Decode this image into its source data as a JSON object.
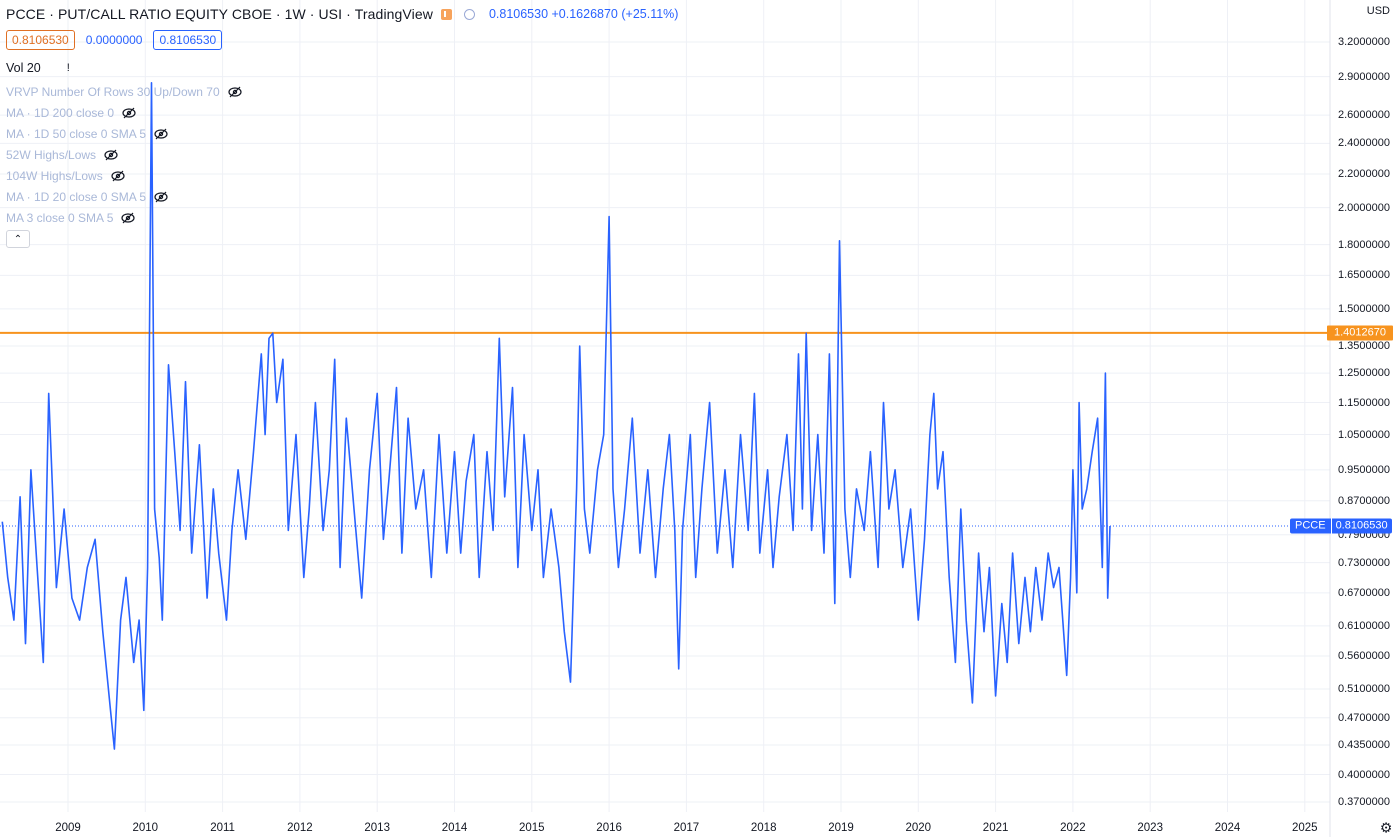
{
  "header": {
    "symbol": "PCCE",
    "description": "PUT/CALL RATIO EQUITY CBOE",
    "interval": "1W",
    "exchange": "USI",
    "source": "TradingView",
    "change_text": "0.8106530 +0.1626870 (+25.11%)"
  },
  "values": {
    "open": "0.8106530",
    "change": "0.0000000",
    "close": "0.8106530"
  },
  "volume": {
    "label": "Vol 20",
    "warning": "!"
  },
  "indicators": [
    {
      "label": "VRVP Number Of Rows 30 Up/Down 70"
    },
    {
      "label": "MA · 1D 200 close 0"
    },
    {
      "label": "MA · 1D 50 close 0 SMA 5"
    },
    {
      "label": "52W Highs/Lows"
    },
    {
      "label": "104W Highs/Lows"
    },
    {
      "label": "MA · 1D 20 close 0 SMA 5"
    },
    {
      "label": "MA 3 close 0 SMA 5"
    }
  ],
  "axis": {
    "currency": "USD",
    "gear_icon": "gear-icon"
  },
  "price_label": {
    "name": "PCCE",
    "value": "0.8106530"
  },
  "horizontal_line": {
    "value": 1.401267,
    "label": "1.4012670",
    "color": "#f7931e"
  },
  "colors": {
    "series": "#2962ff",
    "grid": "#eef0f6",
    "hline": "#f7931e"
  },
  "chart_data": {
    "type": "line",
    "title": "PCCE · PUT/CALL RATIO EQUITY CBOE · 1W",
    "scale": "log",
    "ylim": [
      0.35,
      3.3
    ],
    "xlim": [
      2008.15,
      2025.3
    ],
    "y_ticks": [
      3.2,
      2.9,
      2.6,
      2.4,
      2.2,
      2.0,
      1.8,
      1.65,
      1.5,
      1.35,
      1.25,
      1.15,
      1.05,
      0.95,
      0.87,
      0.79,
      0.73,
      0.67,
      0.61,
      0.56,
      0.51,
      0.47,
      0.435,
      0.4,
      0.37
    ],
    "y_tick_labels": [
      "3.2000000",
      "2.9000000",
      "2.6000000",
      "2.4000000",
      "2.2000000",
      "2.0000000",
      "1.8000000",
      "1.6500000",
      "1.5000000",
      "1.3500000",
      "1.2500000",
      "1.1500000",
      "1.0500000",
      "0.9500000",
      "0.8700000",
      "0.7900000",
      "0.7300000",
      "0.6700000",
      "0.6100000",
      "0.5600000",
      "0.5100000",
      "0.4700000",
      "0.4350000",
      "0.4000000",
      "0.3700000"
    ],
    "x_ticks": [
      2009,
      2010,
      2011,
      2012,
      2013,
      2014,
      2015,
      2016,
      2017,
      2018,
      2019,
      2020,
      2021,
      2022,
      2023,
      2024,
      2025
    ],
    "x_tick_labels": [
      "2009",
      "2010",
      "2011",
      "2012",
      "2013",
      "2014",
      "2015",
      "2016",
      "2017",
      "2018",
      "2019",
      "2020",
      "2021",
      "2022",
      "2023",
      "2024",
      "2025"
    ],
    "grid": true,
    "series": [
      {
        "values": [
          [
            2008.15,
            0.82
          ],
          [
            2008.22,
            0.7
          ],
          [
            2008.3,
            0.62
          ],
          [
            2008.38,
            0.88
          ],
          [
            2008.45,
            0.58
          ],
          [
            2008.52,
            0.95
          ],
          [
            2008.6,
            0.72
          ],
          [
            2008.68,
            0.55
          ],
          [
            2008.75,
            1.18
          ],
          [
            2008.85,
            0.68
          ],
          [
            2008.95,
            0.85
          ],
          [
            2009.05,
            0.66
          ],
          [
            2009.15,
            0.62
          ],
          [
            2009.25,
            0.72
          ],
          [
            2009.35,
            0.78
          ],
          [
            2009.45,
            0.6
          ],
          [
            2009.55,
            0.48
          ],
          [
            2009.6,
            0.43
          ],
          [
            2009.68,
            0.62
          ],
          [
            2009.75,
            0.7
          ],
          [
            2009.85,
            0.55
          ],
          [
            2009.92,
            0.62
          ],
          [
            2009.98,
            0.48
          ],
          [
            2010.03,
            0.72
          ],
          [
            2010.08,
            2.85
          ],
          [
            2010.12,
            0.85
          ],
          [
            2010.18,
            0.74
          ],
          [
            2010.22,
            0.62
          ],
          [
            2010.3,
            1.28
          ],
          [
            2010.38,
            1.0
          ],
          [
            2010.45,
            0.8
          ],
          [
            2010.52,
            1.22
          ],
          [
            2010.6,
            0.75
          ],
          [
            2010.7,
            1.02
          ],
          [
            2010.8,
            0.66
          ],
          [
            2010.88,
            0.9
          ],
          [
            2010.95,
            0.75
          ],
          [
            2011.05,
            0.62
          ],
          [
            2011.12,
            0.8
          ],
          [
            2011.2,
            0.95
          ],
          [
            2011.3,
            0.78
          ],
          [
            2011.4,
            1.0
          ],
          [
            2011.5,
            1.32
          ],
          [
            2011.55,
            1.05
          ],
          [
            2011.6,
            1.38
          ],
          [
            2011.65,
            1.4
          ],
          [
            2011.7,
            1.15
          ],
          [
            2011.78,
            1.3
          ],
          [
            2011.85,
            0.8
          ],
          [
            2011.95,
            1.05
          ],
          [
            2012.05,
            0.7
          ],
          [
            2012.12,
            0.85
          ],
          [
            2012.2,
            1.15
          ],
          [
            2012.3,
            0.8
          ],
          [
            2012.38,
            0.95
          ],
          [
            2012.45,
            1.3
          ],
          [
            2012.52,
            0.72
          ],
          [
            2012.6,
            1.1
          ],
          [
            2012.7,
            0.85
          ],
          [
            2012.8,
            0.66
          ],
          [
            2012.9,
            0.95
          ],
          [
            2013.0,
            1.18
          ],
          [
            2013.08,
            0.78
          ],
          [
            2013.15,
            0.92
          ],
          [
            2013.25,
            1.2
          ],
          [
            2013.32,
            0.75
          ],
          [
            2013.4,
            1.1
          ],
          [
            2013.5,
            0.85
          ],
          [
            2013.6,
            0.95
          ],
          [
            2013.7,
            0.7
          ],
          [
            2013.8,
            1.05
          ],
          [
            2013.9,
            0.75
          ],
          [
            2014.0,
            1.0
          ],
          [
            2014.08,
            0.75
          ],
          [
            2014.15,
            0.92
          ],
          [
            2014.25,
            1.05
          ],
          [
            2014.32,
            0.7
          ],
          [
            2014.42,
            1.0
          ],
          [
            2014.5,
            0.8
          ],
          [
            2014.58,
            1.38
          ],
          [
            2014.65,
            0.88
          ],
          [
            2014.75,
            1.2
          ],
          [
            2014.82,
            0.72
          ],
          [
            2014.9,
            1.05
          ],
          [
            2015.0,
            0.8
          ],
          [
            2015.08,
            0.95
          ],
          [
            2015.15,
            0.7
          ],
          [
            2015.25,
            0.85
          ],
          [
            2015.35,
            0.72
          ],
          [
            2015.42,
            0.6
          ],
          [
            2015.5,
            0.52
          ],
          [
            2015.58,
            0.9
          ],
          [
            2015.62,
            1.35
          ],
          [
            2015.68,
            0.85
          ],
          [
            2015.75,
            0.75
          ],
          [
            2015.85,
            0.95
          ],
          [
            2015.93,
            1.05
          ],
          [
            2016.0,
            1.95
          ],
          [
            2016.05,
            0.9
          ],
          [
            2016.12,
            0.72
          ],
          [
            2016.2,
            0.85
          ],
          [
            2016.3,
            1.1
          ],
          [
            2016.4,
            0.75
          ],
          [
            2016.5,
            0.95
          ],
          [
            2016.6,
            0.7
          ],
          [
            2016.7,
            0.9
          ],
          [
            2016.78,
            1.05
          ],
          [
            2016.85,
            0.8
          ],
          [
            2016.9,
            0.54
          ],
          [
            2016.95,
            0.8
          ],
          [
            2017.05,
            1.05
          ],
          [
            2017.12,
            0.7
          ],
          [
            2017.2,
            0.9
          ],
          [
            2017.3,
            1.15
          ],
          [
            2017.4,
            0.75
          ],
          [
            2017.5,
            0.95
          ],
          [
            2017.6,
            0.72
          ],
          [
            2017.7,
            1.05
          ],
          [
            2017.8,
            0.8
          ],
          [
            2017.88,
            1.18
          ],
          [
            2017.95,
            0.75
          ],
          [
            2018.05,
            0.95
          ],
          [
            2018.12,
            0.72
          ],
          [
            2018.2,
            0.88
          ],
          [
            2018.3,
            1.05
          ],
          [
            2018.38,
            0.8
          ],
          [
            2018.45,
            1.32
          ],
          [
            2018.5,
            0.85
          ],
          [
            2018.55,
            1.4
          ],
          [
            2018.62,
            0.8
          ],
          [
            2018.7,
            1.05
          ],
          [
            2018.78,
            0.75
          ],
          [
            2018.85,
            1.32
          ],
          [
            2018.92,
            0.65
          ],
          [
            2018.98,
            1.82
          ],
          [
            2019.05,
            0.85
          ],
          [
            2019.12,
            0.7
          ],
          [
            2019.2,
            0.9
          ],
          [
            2019.3,
            0.8
          ],
          [
            2019.38,
            1.0
          ],
          [
            2019.48,
            0.72
          ],
          [
            2019.55,
            1.15
          ],
          [
            2019.62,
            0.85
          ],
          [
            2019.7,
            0.95
          ],
          [
            2019.8,
            0.72
          ],
          [
            2019.9,
            0.85
          ],
          [
            2020.0,
            0.62
          ],
          [
            2020.08,
            0.78
          ],
          [
            2020.15,
            1.05
          ],
          [
            2020.2,
            1.18
          ],
          [
            2020.25,
            0.9
          ],
          [
            2020.32,
            1.0
          ],
          [
            2020.4,
            0.7
          ],
          [
            2020.48,
            0.55
          ],
          [
            2020.55,
            0.85
          ],
          [
            2020.62,
            0.62
          ],
          [
            2020.7,
            0.49
          ],
          [
            2020.78,
            0.75
          ],
          [
            2020.85,
            0.6
          ],
          [
            2020.92,
            0.72
          ],
          [
            2021.0,
            0.5
          ],
          [
            2021.08,
            0.65
          ],
          [
            2021.15,
            0.55
          ],
          [
            2021.22,
            0.75
          ],
          [
            2021.3,
            0.58
          ],
          [
            2021.38,
            0.7
          ],
          [
            2021.45,
            0.6
          ],
          [
            2021.52,
            0.72
          ],
          [
            2021.6,
            0.62
          ],
          [
            2021.68,
            0.75
          ],
          [
            2021.75,
            0.68
          ],
          [
            2021.82,
            0.72
          ],
          [
            2021.88,
            0.6
          ],
          [
            2021.92,
            0.53
          ],
          [
            2021.97,
            0.7
          ],
          [
            2022.0,
            0.95
          ],
          [
            2022.05,
            0.67
          ],
          [
            2022.08,
            1.15
          ],
          [
            2022.12,
            0.85
          ],
          [
            2022.18,
            0.9
          ],
          [
            2022.25,
            1.0
          ],
          [
            2022.32,
            1.1
          ],
          [
            2022.38,
            0.72
          ],
          [
            2022.42,
            1.25
          ],
          [
            2022.45,
            0.66
          ],
          [
            2022.48,
            0.81
          ]
        ]
      }
    ]
  }
}
